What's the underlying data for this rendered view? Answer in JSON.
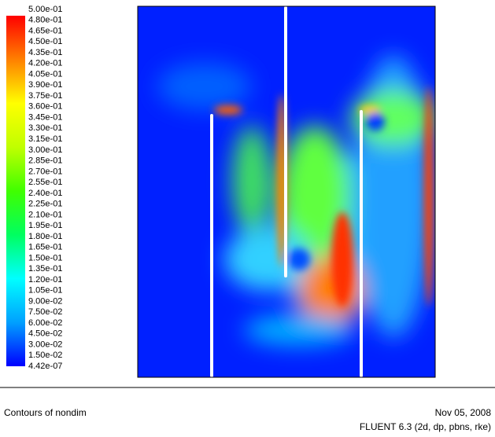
{
  "chart_data": {
    "type": "contour",
    "title": "Contours of nondim",
    "date": "Nov 05, 2008",
    "software": "FLUENT 6.3 (2d, dp, pbns, rke)",
    "colormap": [
      "#0000ff",
      "#00a0ff",
      "#00ffff",
      "#00ff60",
      "#40ff00",
      "#c0ff00",
      "#ffff00",
      "#ff8000",
      "#ff0000"
    ],
    "cticks": [
      {
        "value": 0.5,
        "label": "5.00e-01"
      },
      {
        "value": 0.48,
        "label": "4.80e-01"
      },
      {
        "value": 0.465,
        "label": "4.65e-01"
      },
      {
        "value": 0.45,
        "label": "4.50e-01"
      },
      {
        "value": 0.435,
        "label": "4.35e-01"
      },
      {
        "value": 0.42,
        "label": "4.20e-01"
      },
      {
        "value": 0.405,
        "label": "4.05e-01"
      },
      {
        "value": 0.39,
        "label": "3.90e-01"
      },
      {
        "value": 0.375,
        "label": "3.75e-01"
      },
      {
        "value": 0.36,
        "label": "3.60e-01"
      },
      {
        "value": 0.345,
        "label": "3.45e-01"
      },
      {
        "value": 0.33,
        "label": "3.30e-01"
      },
      {
        "value": 0.315,
        "label": "3.15e-01"
      },
      {
        "value": 0.3,
        "label": "3.00e-01"
      },
      {
        "value": 0.285,
        "label": "2.85e-01"
      },
      {
        "value": 0.27,
        "label": "2.70e-01"
      },
      {
        "value": 0.255,
        "label": "2.55e-01"
      },
      {
        "value": 0.24,
        "label": "2.40e-01"
      },
      {
        "value": 0.225,
        "label": "2.25e-01"
      },
      {
        "value": 0.21,
        "label": "2.10e-01"
      },
      {
        "value": 0.195,
        "label": "1.95e-01"
      },
      {
        "value": 0.18,
        "label": "1.80e-01"
      },
      {
        "value": 0.165,
        "label": "1.65e-01"
      },
      {
        "value": 0.15,
        "label": "1.50e-01"
      },
      {
        "value": 0.135,
        "label": "1.35e-01"
      },
      {
        "value": 0.12,
        "label": "1.20e-01"
      },
      {
        "value": 0.105,
        "label": "1.05e-01"
      },
      {
        "value": 0.09,
        "label": "9.00e-02"
      },
      {
        "value": 0.075,
        "label": "7.50e-02"
      },
      {
        "value": 0.06,
        "label": "6.00e-02"
      },
      {
        "value": 0.045,
        "label": "4.50e-02"
      },
      {
        "value": 0.03,
        "label": "3.00e-02"
      },
      {
        "value": 0.015,
        "label": "1.50e-02"
      },
      {
        "value": 4.42e-07,
        "label": "4.42e-07"
      }
    ]
  }
}
